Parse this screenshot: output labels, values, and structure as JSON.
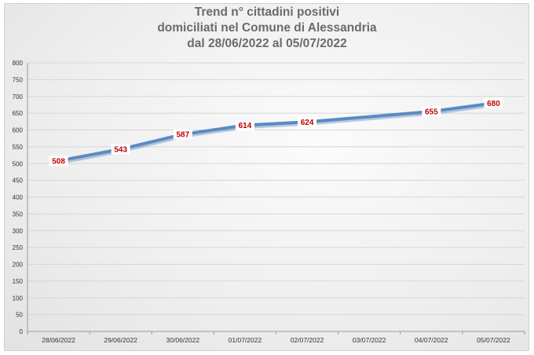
{
  "chart_data": {
    "type": "line",
    "title_lines": [
      "Trend n° cittadini positivi",
      "domiciliati nel Comune di Alessandria",
      "dal 28/06/2022 al 05/07/2022"
    ],
    "categories": [
      "28/06/2022",
      "29/06/2022",
      "30/06/2022",
      "01/07/2022",
      "02/07/2022",
      "03/07/2022",
      "04/07/2022",
      "05/07/2022"
    ],
    "series": [
      {
        "values": [
          508,
          543,
          587,
          614,
          624,
          null,
          655,
          680
        ],
        "data_labels": [
          "508",
          "543",
          "587",
          "614",
          "624",
          "",
          "655",
          "680"
        ],
        "line_color": "#5b8ac2"
      }
    ],
    "ylim": [
      0,
      800
    ],
    "yticks": [
      0,
      50,
      100,
      150,
      200,
      250,
      300,
      350,
      400,
      450,
      500,
      550,
      600,
      650,
      700,
      750,
      800
    ],
    "grid": true,
    "legend": "none",
    "label_color": "#c00000"
  }
}
